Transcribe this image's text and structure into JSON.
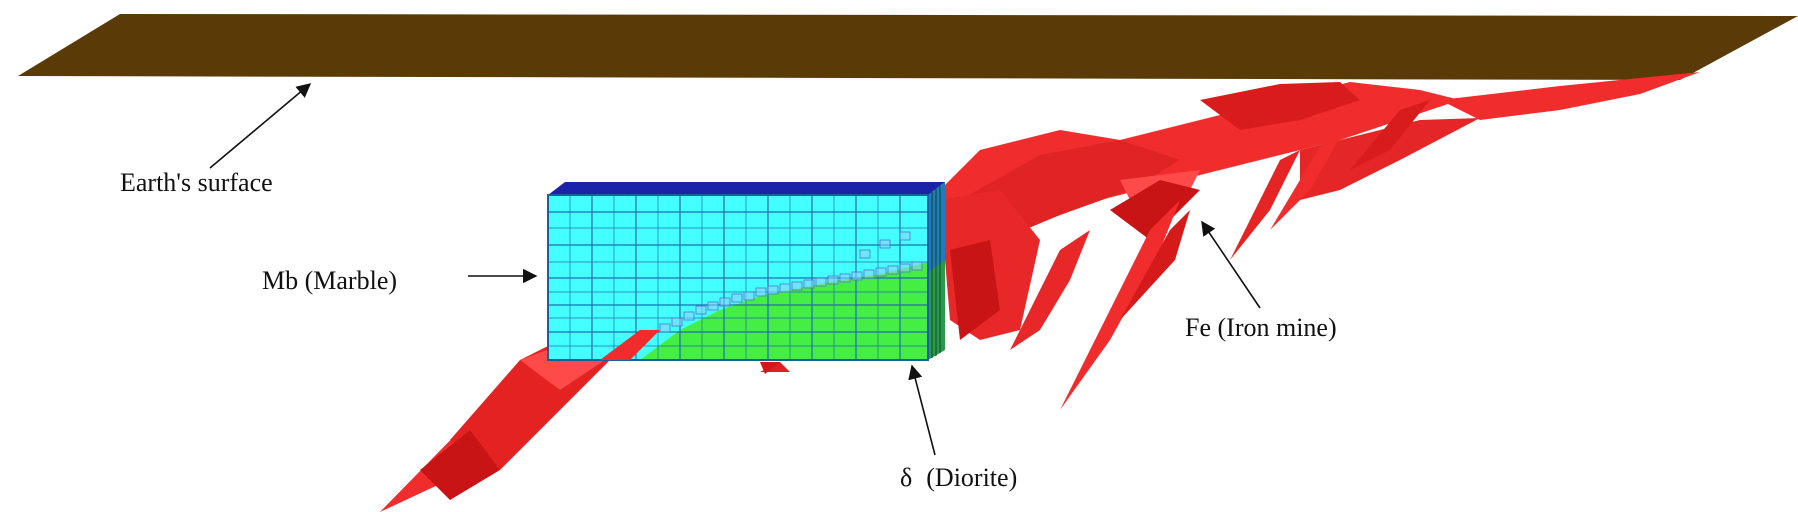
{
  "colors": {
    "surface": "#5a3a06",
    "iron": "#f02c2c",
    "iron_dark": "#c81414",
    "marble": "#44ffff",
    "marble_top": "#1b23a8",
    "diorite": "#44ee44",
    "grid": "#1f6fb0",
    "arrow": "#111111"
  },
  "labels": {
    "earth_surface": "Earth's surface",
    "marble": "Mb (Marble)",
    "iron": "Fe (Iron mine)",
    "diorite_symbol": "δ",
    "diorite": "(Diorite)"
  }
}
